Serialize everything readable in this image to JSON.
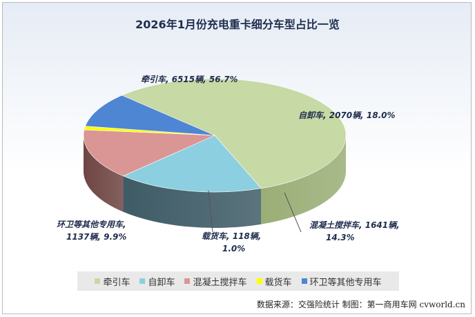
{
  "chart_data": {
    "type": "pie",
    "title": "2026年1月份充电重卡细分车型占比一览",
    "slices": [
      {
        "name": "牵引车",
        "value": 6515,
        "percent": 56.7,
        "label_value": "6515辆",
        "label_percent": "56.7%",
        "color": "#c7d9a4",
        "side_color": "#9aae76"
      },
      {
        "name": "自卸车",
        "value": 2070,
        "percent": 18.0,
        "label_value": "2070辆",
        "label_percent": "18.0%",
        "color": "#8ccfe0",
        "side_color": "#3e5b66"
      },
      {
        "name": "混凝土搅拌车",
        "value": 1641,
        "percent": 14.3,
        "label_value": "1641辆",
        "label_percent": "14.3%",
        "color": "#d99694",
        "side_color": "#6e4542"
      },
      {
        "name": "载货车",
        "value": 118,
        "percent": 1.0,
        "label_value": "118辆",
        "label_percent": "1.0%",
        "color": "#ffff00",
        "side_color": "#8c8c2a"
      },
      {
        "name": "环卫等其他专用车",
        "value": 1137,
        "percent": 9.9,
        "label_value": "1137辆",
        "label_percent": "9.9%",
        "color": "#4f86d4",
        "side_color": "#2b4e86"
      }
    ],
    "legend_position": "bottom",
    "style": "3d"
  },
  "labels": {
    "s0": "牵引车, 6515辆, 56.7%",
    "s1": "自卸车, 2070辆, 18.0%",
    "s2_line1": "混凝土搅拌车, 1641辆,",
    "s2_line2": "14.3%",
    "s3_line1": "载货车, 118辆,",
    "s3_line2": "1.0%",
    "s4_line1": "环卫等其他专用车,",
    "s4_line2": "1137辆, 9.9%"
  },
  "source_text": "数据来源：交强险统计 制图：第一商用车网 cvworld.cn"
}
